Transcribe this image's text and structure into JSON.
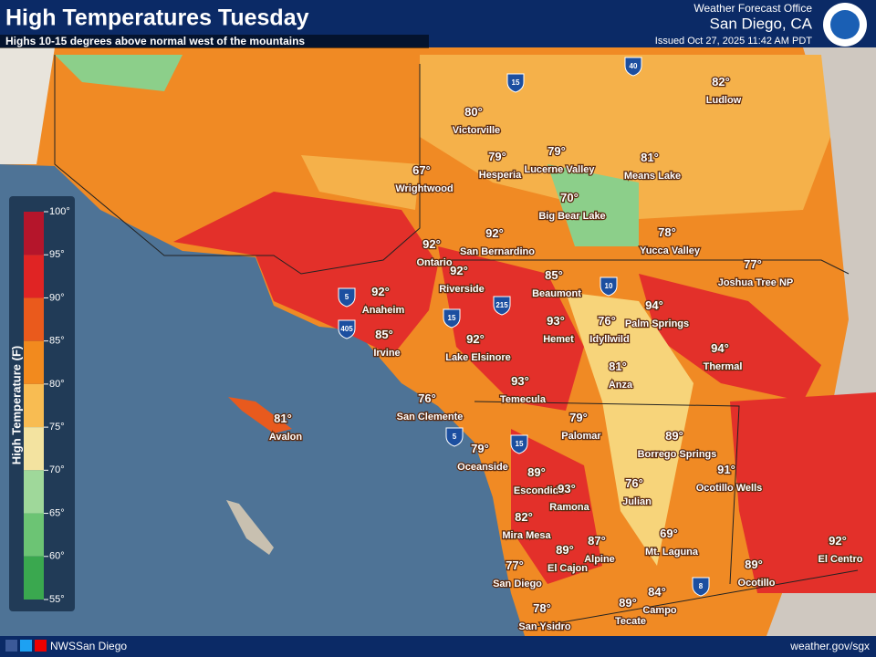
{
  "header": {
    "title": "High Temperatures Tuesday",
    "subtitle": "Highs 10-15 degrees above normal west of the mountains",
    "office": "Weather Forecast Office",
    "location": "San Diego, CA",
    "issued": "Issued Oct 27, 2025 11:42 AM PDT"
  },
  "legend": {
    "label": "High Temperature (F)",
    "ticks": [
      "100°",
      "95°",
      "90°",
      "85°",
      "80°",
      "75°",
      "70°",
      "65°",
      "60°",
      "55°"
    ]
  },
  "cities": [
    {
      "temp": "80°",
      "name": "Victorville"
    },
    {
      "temp": "79°",
      "name": "Hesperia"
    },
    {
      "temp": "79°",
      "name": "Lucerne Valley"
    },
    {
      "temp": "81°",
      "name": "Means Lake"
    },
    {
      "temp": "82°",
      "name": "Ludlow"
    },
    {
      "temp": "67°",
      "name": "Wrightwood"
    },
    {
      "temp": "70°",
      "name": "Big Bear Lake"
    },
    {
      "temp": "78°",
      "name": "Yucca Valley"
    },
    {
      "temp": "92°",
      "name": "San Bernardino"
    },
    {
      "temp": "92°",
      "name": "Ontario"
    },
    {
      "temp": "92°",
      "name": "Riverside"
    },
    {
      "temp": "85°",
      "name": "Beaumont"
    },
    {
      "temp": "77°",
      "name": "Joshua Tree NP"
    },
    {
      "temp": "92°",
      "name": "Anaheim"
    },
    {
      "temp": "94°",
      "name": "Palm Springs"
    },
    {
      "temp": "93°",
      "name": "Hemet"
    },
    {
      "temp": "76°",
      "name": "Idyllwild"
    },
    {
      "temp": "85°",
      "name": "Irvine"
    },
    {
      "temp": "92°",
      "name": "Lake Elsinore"
    },
    {
      "temp": "94°",
      "name": "Thermal"
    },
    {
      "temp": "81°",
      "name": "Anza"
    },
    {
      "temp": "93°",
      "name": "Temecula"
    },
    {
      "temp": "76°",
      "name": "San Clemente"
    },
    {
      "temp": "81°",
      "name": "Avalon"
    },
    {
      "temp": "79°",
      "name": "Palomar"
    },
    {
      "temp": "89°",
      "name": "Borrego Springs"
    },
    {
      "temp": "79°",
      "name": "Oceanside"
    },
    {
      "temp": "89°",
      "name": "Escondido"
    },
    {
      "temp": "93°",
      "name": "Ramona"
    },
    {
      "temp": "91°",
      "name": "Ocotillo Wells"
    },
    {
      "temp": "76°",
      "name": "Julian"
    },
    {
      "temp": "82°",
      "name": "Mira Mesa"
    },
    {
      "temp": "69°",
      "name": "Mt. Laguna"
    },
    {
      "temp": "87°",
      "name": "Alpine"
    },
    {
      "temp": "89°",
      "name": "El Cajon"
    },
    {
      "temp": "77°",
      "name": "San Diego"
    },
    {
      "temp": "92°",
      "name": "El Centro"
    },
    {
      "temp": "89°",
      "name": "Ocotillo"
    },
    {
      "temp": "84°",
      "name": "Campo"
    },
    {
      "temp": "89°",
      "name": "Tecate"
    },
    {
      "temp": "78°",
      "name": "San Ysidro"
    }
  ],
  "interstates": [
    "40",
    "15",
    "10",
    "215",
    "5",
    "405",
    "15",
    "5",
    "15",
    "8"
  ],
  "footer": {
    "handle": "NWSSan Diego",
    "url": "weather.gov/sgx"
  }
}
